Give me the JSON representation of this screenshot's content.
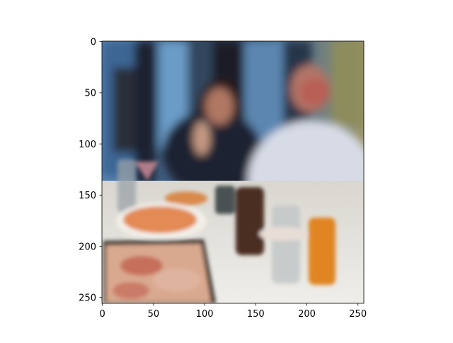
{
  "axes": {
    "x_ticks": [
      "0",
      "50",
      "100",
      "150",
      "200",
      "250"
    ],
    "y_ticks": [
      "0",
      "50",
      "100",
      "150",
      "200",
      "250"
    ],
    "x_range": [
      0,
      256
    ],
    "y_range": [
      256,
      0
    ],
    "y_inverted": true
  },
  "image": {
    "description_icon": "photo-of-diners-at-pizza-table-icon"
  }
}
